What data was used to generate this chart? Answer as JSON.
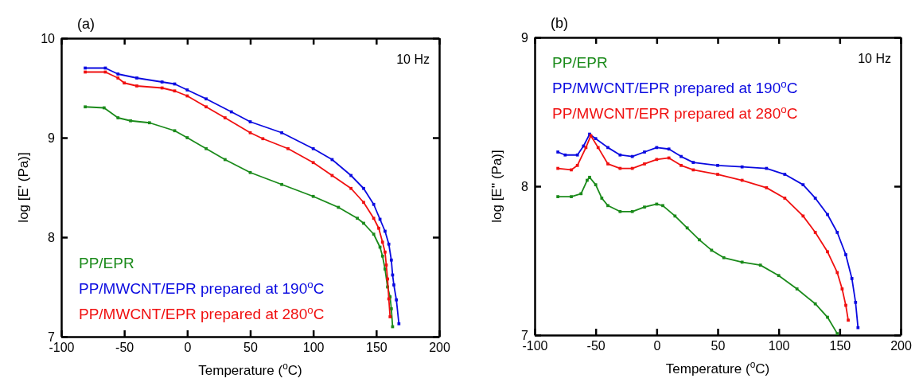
{
  "chart_data": [
    {
      "type": "line",
      "title": "(a)",
      "xlabel": "Temperature ($^{o}$C)",
      "ylabel": "log [E' (Pa)]",
      "xlim": [
        -100,
        200
      ],
      "xticks": [
        -100,
        -50,
        0,
        50,
        100,
        150,
        200
      ],
      "ylim": [
        7,
        10
      ],
      "yticks": [
        7,
        8,
        9,
        10
      ],
      "grid": false,
      "legend": "bottom left",
      "marker": "square",
      "line_style": "solid",
      "annotations": [
        "10 Hz"
      ],
      "series": [
        {
          "name": "PP/EPR",
          "color": "#1a8a1a",
          "x": [
            -81,
            -66,
            -55,
            -45,
            -30,
            -10,
            0,
            15,
            30,
            50,
            75,
            100,
            120,
            135,
            140,
            148,
            153,
            155,
            157,
            159,
            161,
            162,
            163
          ],
          "values": [
            9.31,
            9.3,
            9.2,
            9.17,
            9.15,
            9.07,
            9.0,
            8.89,
            8.78,
            8.65,
            8.53,
            8.41,
            8.3,
            8.19,
            8.14,
            8.03,
            7.9,
            7.81,
            7.68,
            7.5,
            7.4,
            7.28,
            7.1
          ]
        },
        {
          "name": "PP/MWCNT/EPR prepared at 190$^{o}$C",
          "color": "#0a0ae0",
          "x": [
            -81,
            -65,
            -55,
            -40,
            -20,
            -10,
            0,
            15,
            35,
            50,
            75,
            100,
            115,
            130,
            140,
            148,
            153,
            157,
            160,
            162,
            163,
            164,
            166,
            168
          ],
          "values": [
            9.7,
            9.7,
            9.64,
            9.6,
            9.56,
            9.54,
            9.48,
            9.39,
            9.26,
            9.16,
            9.05,
            8.89,
            8.78,
            8.62,
            8.49,
            8.33,
            8.18,
            8.06,
            7.93,
            7.77,
            7.62,
            7.52,
            7.37,
            7.13
          ]
        },
        {
          "name": "PP/MWCNT/EPR prepared at 280$^{o}$C",
          "color": "#f01010",
          "x": [
            -81,
            -65,
            -55,
            -50,
            -40,
            -20,
            -10,
            0,
            15,
            30,
            50,
            60,
            80,
            100,
            115,
            130,
            140,
            148,
            152,
            155,
            157,
            158,
            159,
            160,
            161
          ],
          "values": [
            9.66,
            9.66,
            9.6,
            9.55,
            9.52,
            9.5,
            9.47,
            9.42,
            9.31,
            9.2,
            9.05,
            8.99,
            8.89,
            8.75,
            8.62,
            8.49,
            8.35,
            8.19,
            8.09,
            7.95,
            7.85,
            7.72,
            7.58,
            7.38,
            7.2
          ]
        }
      ]
    },
    {
      "type": "line",
      "title": "(b)",
      "xlabel": "Temperature ($^{o}$C)",
      "ylabel": "log [E'' (Pa)]",
      "xlim": [
        -100,
        200
      ],
      "xticks": [
        -100,
        -50,
        0,
        50,
        100,
        150,
        200
      ],
      "ylim": [
        7,
        9
      ],
      "yticks": [
        7,
        8,
        9
      ],
      "grid": false,
      "legend": "top left",
      "marker": "square",
      "line_style": "solid",
      "annotations": [
        "10 Hz"
      ],
      "series": [
        {
          "name": "PP/EPR",
          "color": "#1a8a1a",
          "x": [
            -81,
            -70,
            -62,
            -57,
            -55,
            -50,
            -45,
            -40,
            -30,
            -20,
            -10,
            0,
            5,
            15,
            25,
            35,
            45,
            55,
            70,
            85,
            100,
            115,
            130,
            140,
            148
          ],
          "values": [
            7.93,
            7.93,
            7.95,
            8.04,
            8.06,
            8.01,
            7.92,
            7.87,
            7.83,
            7.83,
            7.86,
            7.88,
            7.87,
            7.8,
            7.72,
            7.64,
            7.57,
            7.52,
            7.49,
            7.47,
            7.4,
            7.31,
            7.21,
            7.12,
            7.01
          ]
        },
        {
          "name": "PP/MWCNT/EPR prepared at 190$^{o}$C",
          "color": "#0a0ae0",
          "x": [
            -81,
            -75,
            -65,
            -60,
            -55,
            -50,
            -40,
            -30,
            -20,
            -10,
            0,
            10,
            20,
            30,
            50,
            70,
            90,
            105,
            120,
            130,
            140,
            148,
            155,
            160,
            163,
            165
          ],
          "values": [
            8.23,
            8.21,
            8.21,
            8.27,
            8.35,
            8.32,
            8.26,
            8.21,
            8.2,
            8.23,
            8.26,
            8.25,
            8.2,
            8.16,
            8.14,
            8.13,
            8.12,
            8.08,
            8.01,
            7.92,
            7.81,
            7.69,
            7.54,
            7.38,
            7.22,
            7.05
          ]
        },
        {
          "name": "PP/MWCNT/EPR prepared at 280$^{o}$C",
          "color": "#f01010",
          "x": [
            -81,
            -70,
            -65,
            -58,
            -54,
            -48,
            -40,
            -30,
            -20,
            -10,
            0,
            10,
            20,
            30,
            50,
            70,
            90,
            105,
            120,
            130,
            140,
            148,
            152,
            155,
            157
          ],
          "values": [
            8.12,
            8.11,
            8.14,
            8.26,
            8.34,
            8.26,
            8.15,
            8.12,
            8.12,
            8.15,
            8.18,
            8.19,
            8.14,
            8.11,
            8.08,
            8.04,
            7.99,
            7.92,
            7.8,
            7.69,
            7.56,
            7.42,
            7.31,
            7.2,
            7.1
          ]
        }
      ]
    }
  ]
}
